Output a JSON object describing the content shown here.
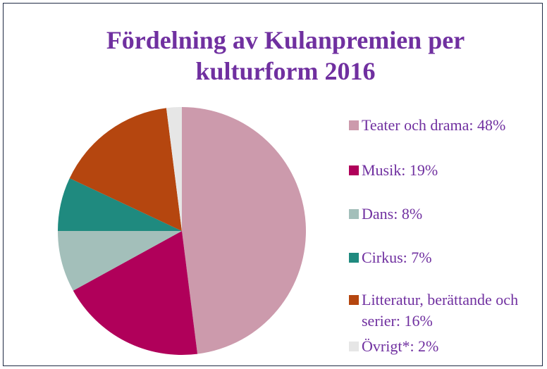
{
  "chart_data": {
    "type": "pie",
    "title": "Fördelning av Kulanpremien per kulturform 2016",
    "categories": [
      "Teater och drama: 48%",
      "Musik: 19%",
      "Dans: 8%",
      "Cirkus: 7%",
      "Litteratur, berättande och serier: 16%",
      "Övrigt*: 2%"
    ],
    "values": [
      48,
      19,
      8,
      7,
      16,
      2
    ],
    "colors": [
      "#cc9aac",
      "#b0005a",
      "#a3bfba",
      "#1f8a7f",
      "#b5460f",
      "#e6e6e6"
    ],
    "legend": "right"
  }
}
